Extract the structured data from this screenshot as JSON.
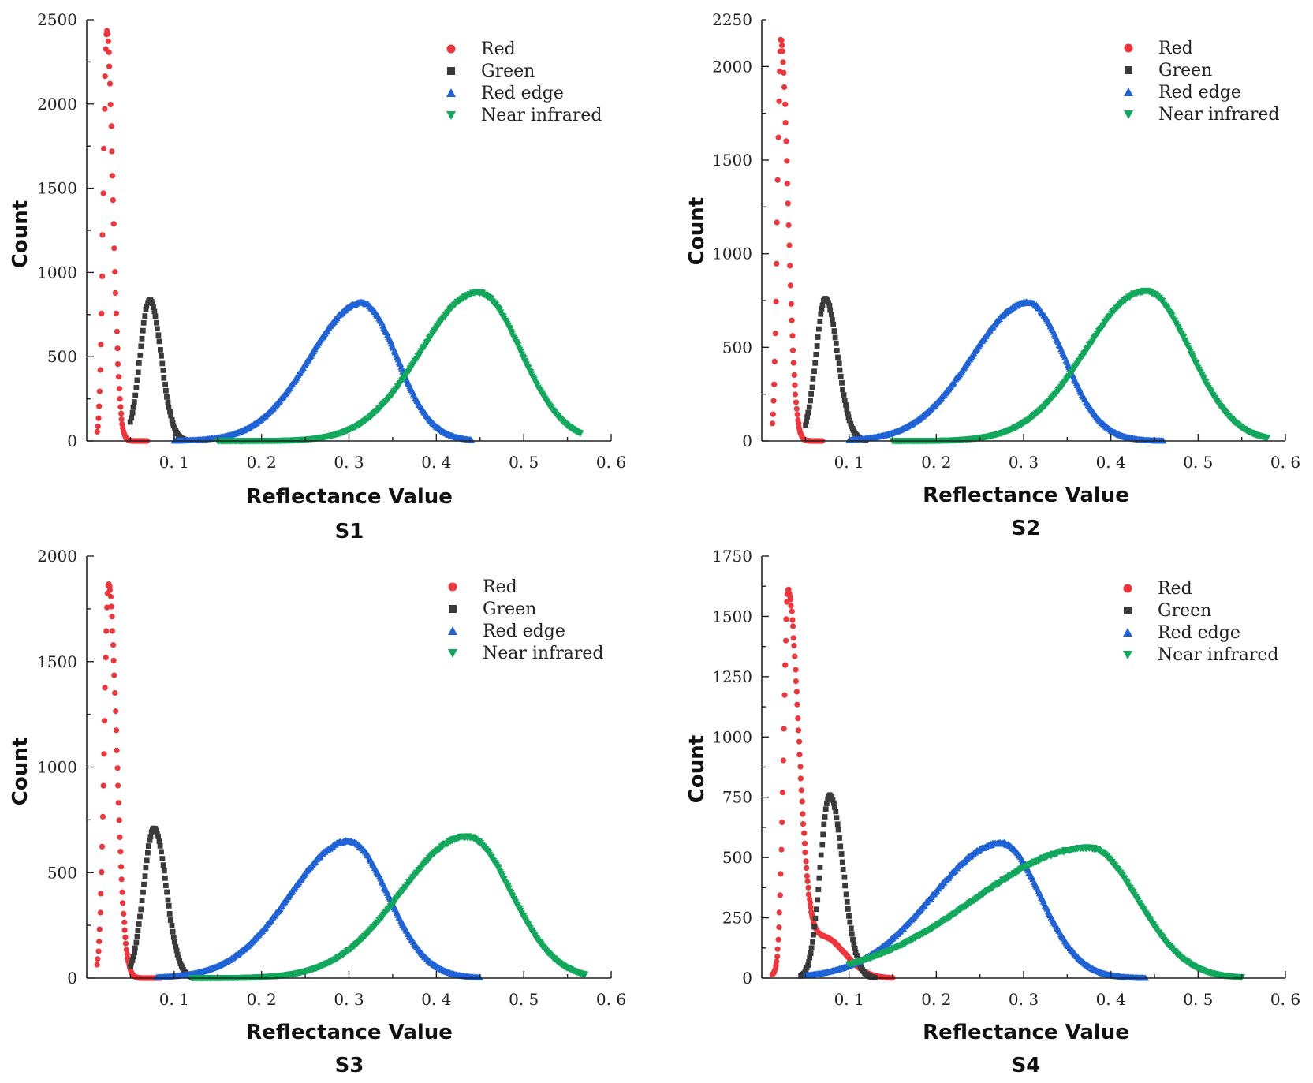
{
  "figure": {
    "xlabel": "Reflectance Value",
    "ylabel": "Count",
    "legend_position": "top-right"
  },
  "colors": {
    "Red": "#f0353a",
    "Green": "#3a3a3a",
    "Red edge": "#1f63d6",
    "Near infrared": "#12a85c"
  },
  "markers": {
    "Red": "circle",
    "Green": "square",
    "Red edge": "triangle-up",
    "Near infrared": "triangle-down"
  },
  "chart_data": [
    {
      "type": "scatter",
      "title": "S1",
      "xlabel": "Reflectance Value",
      "ylabel": "Count",
      "xlim": [
        0,
        0.6
      ],
      "ylim": [
        0,
        2500
      ],
      "xticks": [
        0.1,
        0.2,
        0.3,
        0.4,
        0.5,
        0.6
      ],
      "xtick_labels": [
        "0. 1",
        "0. 2",
        "0. 3",
        "0. 4",
        "0. 5",
        "0. 6"
      ],
      "yticks": [
        0,
        500,
        1000,
        1500,
        2000,
        2500
      ],
      "ytick_labels": [
        "0",
        "500",
        "1000",
        "1500",
        "2000",
        "2500"
      ],
      "series": [
        {
          "name": "Red",
          "peak_x": 0.023,
          "peak_y": 2430,
          "sigma_left": 0.004,
          "sigma_right": 0.007,
          "x_range": [
            0.012,
            0.07
          ]
        },
        {
          "name": "Green",
          "peak_x": 0.072,
          "peak_y": 840,
          "sigma_left": 0.011,
          "sigma_right": 0.013,
          "x_range": [
            0.05,
            0.115
          ]
        },
        {
          "name": "Red edge",
          "peak_x": 0.315,
          "peak_y": 820,
          "sigma_left": 0.06,
          "sigma_right": 0.04,
          "x_range": [
            0.1,
            0.44
          ]
        },
        {
          "name": "Near infrared",
          "peak_x": 0.448,
          "peak_y": 880,
          "sigma_left": 0.065,
          "sigma_right": 0.048,
          "x_range": [
            0.15,
            0.565
          ]
        }
      ]
    },
    {
      "type": "scatter",
      "title": "S2",
      "xlabel": "Reflectance Value",
      "ylabel": "Count",
      "xlim": [
        0,
        0.6
      ],
      "ylim": [
        0,
        2250
      ],
      "xticks": [
        0.1,
        0.2,
        0.3,
        0.4,
        0.5,
        0.6
      ],
      "xtick_labels": [
        "0. 1",
        "0. 2",
        "0. 3",
        "0. 4",
        "0. 5",
        "0. 6"
      ],
      "yticks": [
        0,
        500,
        1000,
        1500,
        2000,
        2250
      ],
      "ytick_labels": [
        "0",
        "500",
        "1000",
        "1500",
        "2000",
        "2250"
      ],
      "series": [
        {
          "name": "Red",
          "peak_x": 0.022,
          "peak_y": 2140,
          "sigma_left": 0.004,
          "sigma_right": 0.008,
          "x_range": [
            0.012,
            0.07
          ]
        },
        {
          "name": "Green",
          "peak_x": 0.073,
          "peak_y": 760,
          "sigma_left": 0.011,
          "sigma_right": 0.014,
          "x_range": [
            0.05,
            0.12
          ]
        },
        {
          "name": "Red edge",
          "peak_x": 0.305,
          "peak_y": 740,
          "sigma_left": 0.065,
          "sigma_right": 0.042,
          "x_range": [
            0.1,
            0.46
          ]
        },
        {
          "name": "Near infrared",
          "peak_x": 0.44,
          "peak_y": 800,
          "sigma_left": 0.068,
          "sigma_right": 0.05,
          "x_range": [
            0.15,
            0.58
          ]
        }
      ]
    },
    {
      "type": "scatter",
      "title": "S3",
      "xlabel": "Reflectance Value",
      "ylabel": "Count",
      "xlim": [
        0,
        0.6
      ],
      "ylim": [
        0,
        2000
      ],
      "xticks": [
        0.1,
        0.2,
        0.3,
        0.4,
        0.5,
        0.6
      ],
      "xtick_labels": [
        "0. 1",
        "0. 2",
        "0. 3",
        "0. 4",
        "0. 5",
        "0. 6"
      ],
      "yticks": [
        0,
        500,
        1000,
        1500,
        2000
      ],
      "ytick_labels": [
        "0",
        "500",
        "1000",
        "1500",
        "2000"
      ],
      "series": [
        {
          "name": "Red",
          "peak_x": 0.025,
          "peak_y": 1870,
          "sigma_left": 0.005,
          "sigma_right": 0.009,
          "x_range": [
            0.012,
            0.085
          ]
        },
        {
          "name": "Green",
          "peak_x": 0.077,
          "peak_y": 710,
          "sigma_left": 0.012,
          "sigma_right": 0.014,
          "x_range": [
            0.05,
            0.125
          ]
        },
        {
          "name": "Red edge",
          "peak_x": 0.3,
          "peak_y": 650,
          "sigma_left": 0.068,
          "sigma_right": 0.045,
          "x_range": [
            0.08,
            0.45
          ]
        },
        {
          "name": "Near infrared",
          "peak_x": 0.435,
          "peak_y": 670,
          "sigma_left": 0.075,
          "sigma_right": 0.05,
          "x_range": [
            0.12,
            0.57
          ]
        }
      ]
    },
    {
      "type": "scatter",
      "title": "S4",
      "xlabel": "Reflectance Value",
      "ylabel": "Count",
      "xlim": [
        0,
        0.6
      ],
      "ylim": [
        0,
        1750
      ],
      "xticks": [
        0.1,
        0.2,
        0.3,
        0.4,
        0.5,
        0.6
      ],
      "xtick_labels": [
        "0. 1",
        "0. 2",
        "0. 3",
        "0. 4",
        "0. 5",
        "0. 6"
      ],
      "yticks": [
        0,
        250,
        500,
        750,
        1000,
        1250,
        1500,
        1750
      ],
      "ytick_labels": [
        "0",
        "250",
        "500",
        "750",
        "1000",
        "1250",
        "1500",
        "1750"
      ],
      "series": [
        {
          "name": "Red",
          "peak_x": 0.03,
          "peak_y": 1560,
          "sigma_left": 0.005,
          "sigma_right": 0.012,
          "tail_height": 170,
          "tail_center": 0.07,
          "tail_sigma": 0.025,
          "x_range": [
            0.012,
            0.15
          ]
        },
        {
          "name": "Green",
          "peak_x": 0.078,
          "peak_y": 760,
          "sigma_left": 0.011,
          "sigma_right": 0.015,
          "x_range": [
            0.045,
            0.13
          ]
        },
        {
          "name": "Red edge",
          "peak_x": 0.275,
          "peak_y": 560,
          "sigma_left": 0.08,
          "sigma_right": 0.045,
          "x_range": [
            0.05,
            0.44
          ]
        },
        {
          "name": "Near infrared",
          "peak_x": 0.375,
          "peak_y": 540,
          "sigma_left": 0.13,
          "sigma_right": 0.055,
          "x_range": [
            0.1,
            0.55
          ]
        }
      ]
    }
  ]
}
